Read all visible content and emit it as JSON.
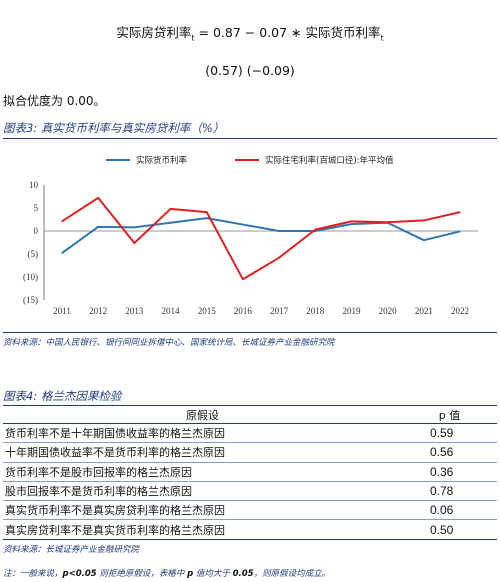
{
  "equation": {
    "lhs": "实际房贷利率",
    "lhs_sub": "t",
    "rhs": "= 0.87 − 0.07 ∗ 实际货币利率",
    "rhs_sub": "t",
    "se": "(0.57) (−0.09)"
  },
  "fit_text": "拟合优度为 0.00。",
  "fig3": {
    "title": "图表3:  真实货币利率与真实房贷利率（%）",
    "source": "资料来源：中国人民银行、银行间同业拆借中心、国家统计局、长城证券产业金融研究院"
  },
  "chart_data": {
    "type": "line",
    "x": [
      "2011",
      "2012",
      "2013",
      "2014",
      "2015",
      "2016",
      "2017",
      "2018",
      "2019",
      "2020",
      "2021",
      "2022"
    ],
    "series": [
      {
        "name": "实际货币利率",
        "color": "#2e75b6",
        "values": [
          -4.8,
          0.9,
          0.8,
          1.8,
          2.8,
          1.4,
          0.0,
          0.0,
          1.5,
          1.8,
          -2.0,
          -0.1
        ]
      },
      {
        "name": "实际住宅利率(百城口径):年平均值",
        "color": "#e02020",
        "values": [
          2.1,
          7.2,
          -2.6,
          4.8,
          4.1,
          -10.5,
          -5.8,
          0.3,
          2.1,
          1.9,
          2.3,
          4.1
        ]
      }
    ],
    "ylim": [
      -15,
      10
    ],
    "yticks": [
      "10",
      "5",
      "0",
      "(5)",
      "(10)",
      "(15)"
    ],
    "grid": false,
    "legend": "top"
  },
  "fig4": {
    "title": "图表4:  格兰杰因果检验",
    "col_hyp": "原假设",
    "col_p": "p 值",
    "rows": [
      {
        "h": "货币利率不是十年期国债收益率的格兰杰原因",
        "p": "0.59"
      },
      {
        "h": "十年期国债收益率不是货币利率的格兰杰原因",
        "p": "0.56"
      },
      {
        "h": "货币利率不是股市回报率的格兰杰原因",
        "p": "0.36"
      },
      {
        "h": "股市回报率不是货币利率的格兰杰原因",
        "p": "0.78"
      },
      {
        "h": "真实货币利率不是真实房贷利率的格兰杰原因",
        "p": "0.06"
      },
      {
        "h": "真实房贷利率不是真实货币利率的格兰杰原因",
        "p": "0.50"
      }
    ],
    "source": "资料来源：长城证券产业金融研究院"
  },
  "note": {
    "pre": "注：一般来说，",
    "bold1": "p<0.05",
    "mid": " 则拒绝原假设，表格中 ",
    "bold2": "p",
    "mid2": " 值均大于 ",
    "bold3": "0.05",
    "post": "，则原假设均成立。"
  }
}
